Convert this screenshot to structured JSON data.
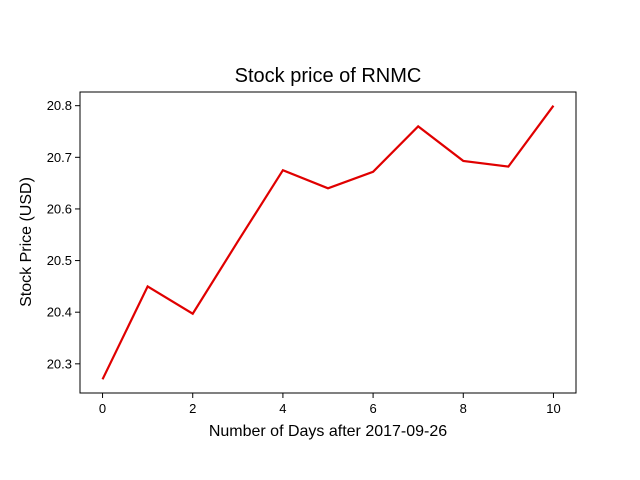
{
  "chart_data": {
    "type": "line",
    "title": "Stock price of RNMC",
    "xlabel": "Number of Days after 2017-09-26",
    "ylabel": "Stock Price (USD)",
    "x": [
      0,
      1,
      2,
      3,
      4,
      5,
      6,
      7,
      8,
      9,
      10
    ],
    "series": [
      {
        "values": [
          20.27,
          20.45,
          20.397,
          20.537,
          20.675,
          20.64,
          20.672,
          20.76,
          20.693,
          20.682,
          20.8
        ],
        "color": "#e00000"
      }
    ],
    "xlim": [
      -0.5,
      10.5
    ],
    "ylim": [
      20.2435,
      20.8265
    ],
    "xticks": [
      0,
      2,
      4,
      6,
      8,
      10
    ],
    "yticks": [
      20.3,
      20.4,
      20.5,
      20.6,
      20.7,
      20.8
    ],
    "xtick_labels": [
      "0",
      "2",
      "4",
      "6",
      "8",
      "10"
    ],
    "ytick_labels": [
      "20.3",
      "20.4",
      "20.5",
      "20.6",
      "20.7",
      "20.8"
    ],
    "grid": false,
    "legend": "none"
  }
}
